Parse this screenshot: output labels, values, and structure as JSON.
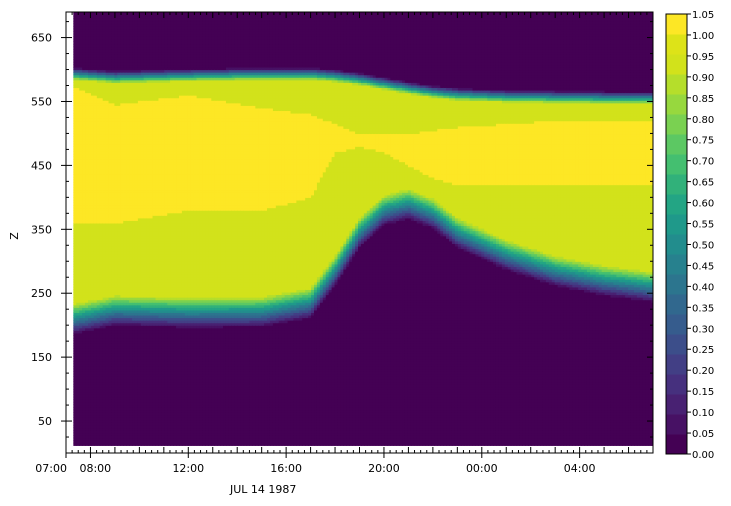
{
  "chart_data": {
    "type": "heatmap",
    "ylabel": "Z",
    "xlabel": "JUL 14 1987",
    "x_ticks": [
      "07:00",
      "08:00",
      "12:00",
      "16:00",
      "20:00",
      "00:00",
      "04:00"
    ],
    "x_tick_hours": [
      0,
      1,
      5,
      9,
      13,
      17,
      21
    ],
    "x_range_hours": [
      0,
      24
    ],
    "y_ticks": [
      50,
      150,
      250,
      350,
      450,
      550,
      650
    ],
    "ylim": [
      0,
      690
    ],
    "colorbar": {
      "ticks": [
        "1.05",
        "1.00",
        "0.95",
        "0.90",
        "0.85",
        "0.80",
        "0.75",
        "0.70",
        "0.65",
        "0.60",
        "0.55",
        "0.50",
        "0.45",
        "0.40",
        "0.35",
        "0.30",
        "0.25",
        "0.20",
        "0.15",
        "0.10",
        "0.05",
        "0.00"
      ],
      "range": [
        0,
        1.05
      ],
      "colors": [
        "#440154",
        "#471164",
        "#482172",
        "#46307e",
        "#423f85",
        "#3c4e8a",
        "#365c8d",
        "#31688e",
        "#2c758e",
        "#27818e",
        "#228d8d",
        "#1f998a",
        "#23a584",
        "#31b17a",
        "#44bf70",
        "#5cc863",
        "#7ad151",
        "#97d83e",
        "#b5de2b",
        "#d2e21b",
        "#dde318",
        "#fde725"
      ]
    },
    "layer_profile": {
      "t_hours": [
        0.3,
        2,
        5,
        8,
        10,
        11,
        12,
        13,
        14,
        15,
        16,
        18,
        20,
        22,
        24
      ],
      "top_edge": [
        600,
        595,
        598,
        600,
        600,
        597,
        592,
        585,
        578,
        572,
        568,
        565,
        564,
        563,
        563
      ],
      "bottom_edge": [
        215,
        228,
        225,
        226,
        240,
        290,
        350,
        385,
        395,
        380,
        350,
        315,
        290,
        275,
        265
      ],
      "core_top": [
        575,
        545,
        560,
        540,
        530,
        515,
        500,
        500,
        500,
        505,
        510,
        515,
        520,
        520,
        520
      ],
      "core_bottom": [
        360,
        360,
        380,
        380,
        400,
        470,
        480,
        470,
        450,
        430,
        420,
        420,
        420,
        420,
        420
      ]
    }
  }
}
